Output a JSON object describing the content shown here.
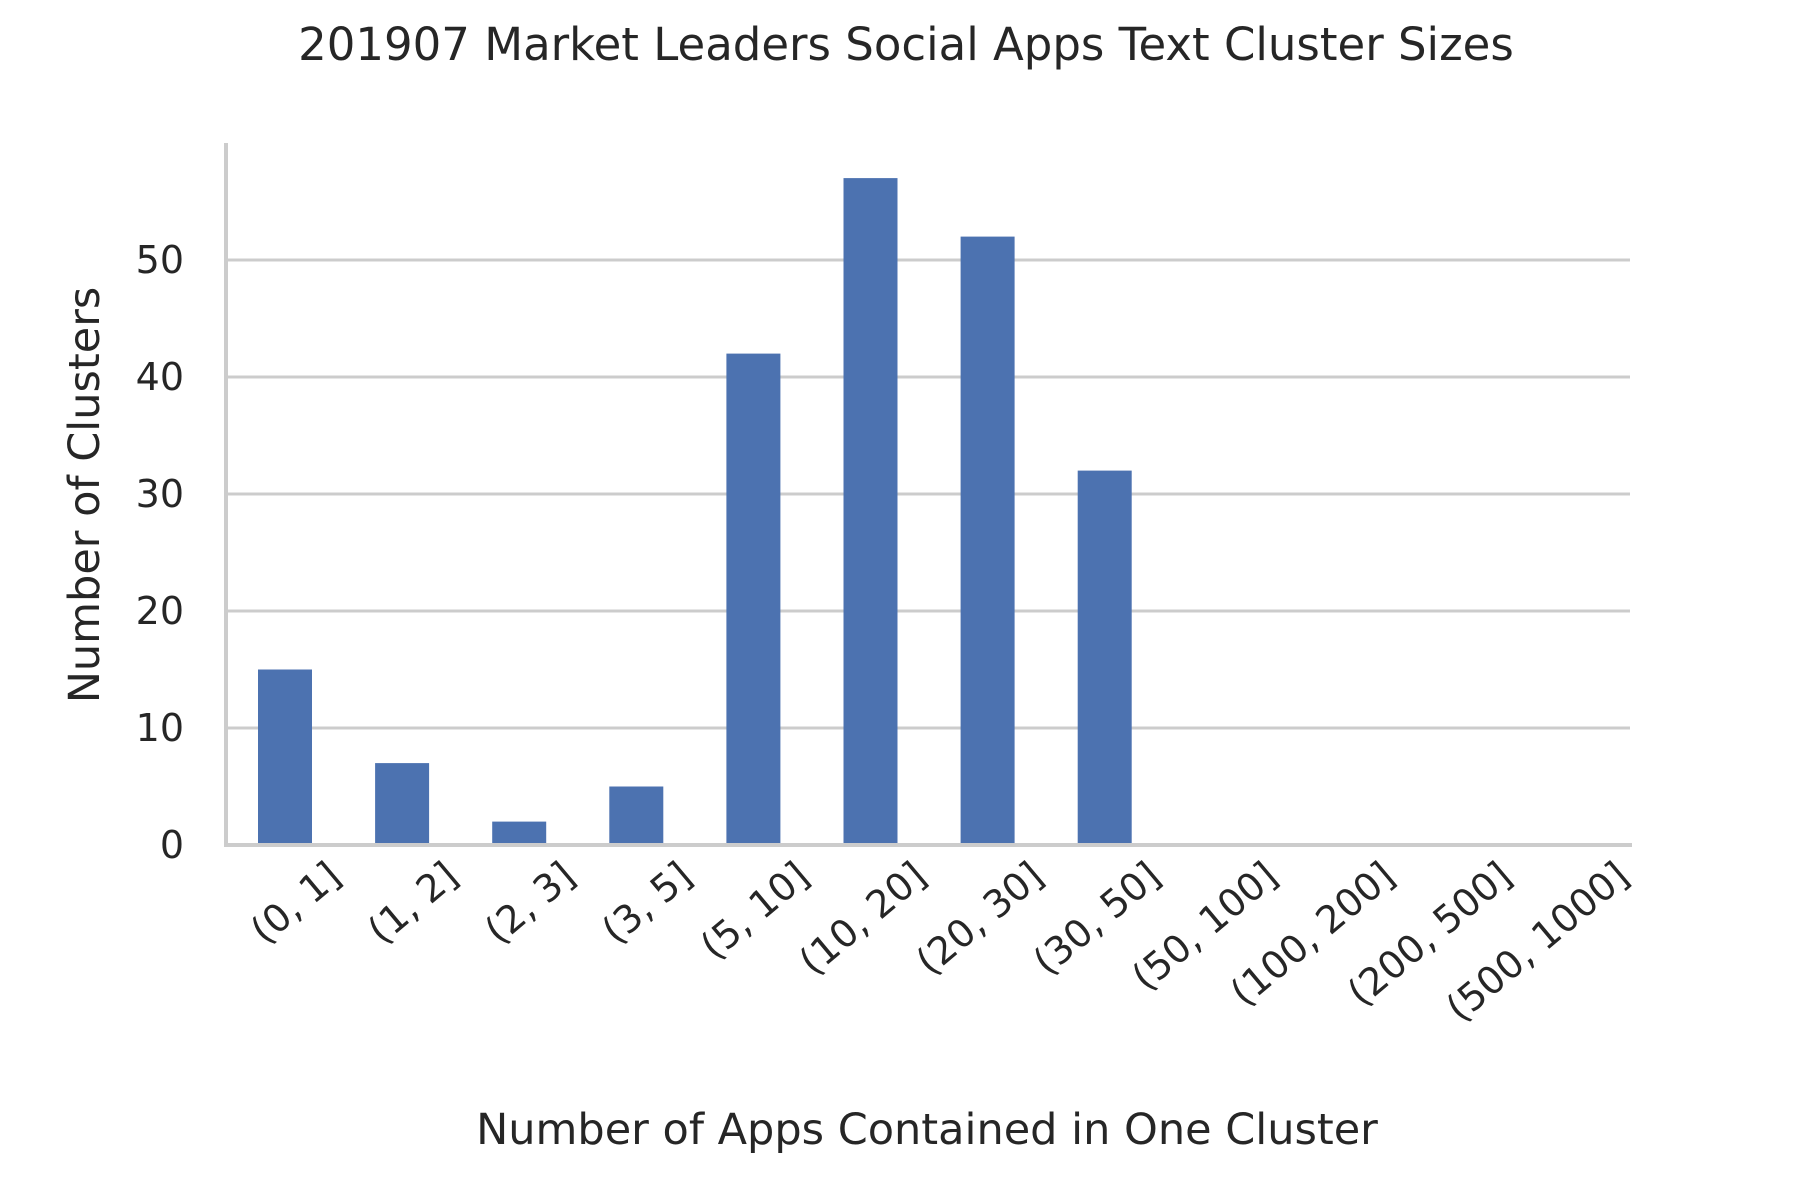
{
  "chart_data": {
    "type": "bar",
    "title": "201907 Market Leaders Social Apps Text Cluster Sizes",
    "xlabel": "Number of Apps Contained in One Cluster",
    "ylabel": "Number of Clusters",
    "categories": [
      "(0, 1]",
      "(1, 2]",
      "(2, 3]",
      "(3, 5]",
      "(5, 10]",
      "(10, 20]",
      "(20, 30]",
      "(30, 50]",
      "(50, 100]",
      "(100, 200]",
      "(200, 500]",
      "(500, 1000]"
    ],
    "values": [
      15,
      7,
      2,
      5,
      42,
      57,
      52,
      32,
      0,
      0,
      0,
      0
    ],
    "yticks": [
      0,
      10,
      20,
      30,
      40,
      50
    ],
    "ylim": [
      0,
      60
    ],
    "grid": true,
    "bar_color": "#4c72b0"
  }
}
